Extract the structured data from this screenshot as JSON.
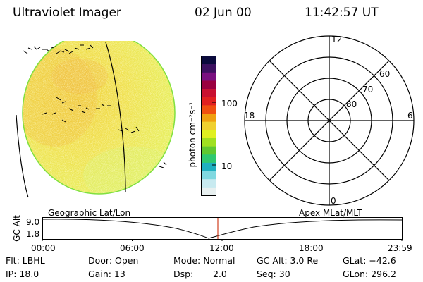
{
  "header": {
    "title": "Ultraviolet Imager",
    "date": "02 Jun 00",
    "time": "11:42:57 UT"
  },
  "colorbar": {
    "unit_label": "photon cm⁻²s⁻¹",
    "ticks": [
      "100",
      "10"
    ],
    "colors": [
      "#0a0a3c",
      "#3c1060",
      "#7a1080",
      "#9a0040",
      "#c81030",
      "#e02020",
      "#f05010",
      "#f0a010",
      "#f0d030",
      "#e0f020",
      "#a0e020",
      "#60c830",
      "#30c870",
      "#20b0c0",
      "#80d8e0",
      "#c8eaf0",
      "#e8f0f0"
    ]
  },
  "polar": {
    "labels": {
      "noon": "12",
      "midnight": "0",
      "dawn": "6",
      "dusk": "18",
      "lat60": "60",
      "lat70": "70",
      "lat80": "80"
    }
  },
  "timeline": {
    "left_title": "Geographic Lat/Lon",
    "right_title": "Apex MLat/MLT",
    "axis_label": "GC Alt",
    "y_ticks": [
      "9.0",
      "1.8"
    ],
    "x_ticks": [
      "00:00",
      "06:00",
      "12:00",
      "18:00",
      "23:59"
    ],
    "current_time_marker_color": "#d04020"
  },
  "info": {
    "flt": "Flt: LBHL",
    "ip": "IP: 18.0",
    "door": "Door: Open",
    "gain": "Gain: 13",
    "mode": "Mode: Normal",
    "dsp_label": "Dsp:",
    "dsp_value": "2.0",
    "gc_alt": "GC Alt: 3.0 Re",
    "seq": "Seq: 30",
    "glat": "GLat: −42.6",
    "glon": "GLon: 296.2"
  }
}
